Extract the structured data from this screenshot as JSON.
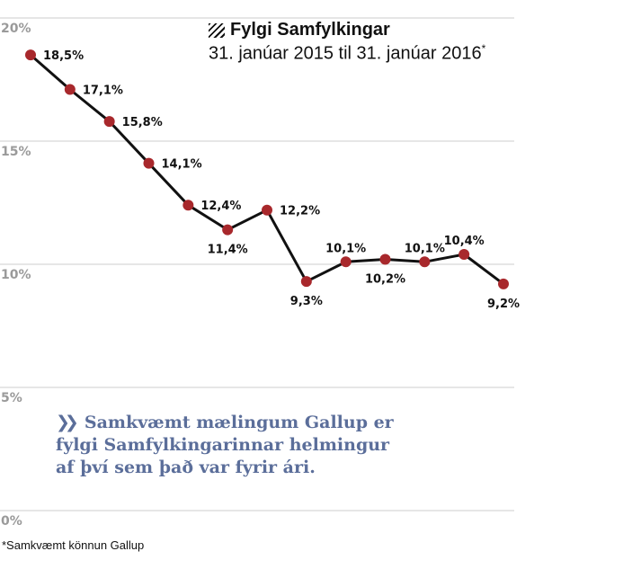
{
  "chart_data": {
    "type": "line",
    "title": "Fylgi Samfylkingar",
    "subtitle": "31. janúar 2015 til 31. janúar 2016",
    "subtitle_marker": "*",
    "x": [
      1,
      2,
      3,
      4,
      5,
      6,
      7,
      8,
      9,
      10,
      11,
      12,
      13
    ],
    "values": [
      18.5,
      17.1,
      15.8,
      14.1,
      12.4,
      11.4,
      12.2,
      9.3,
      10.1,
      10.2,
      10.1,
      10.4,
      9.2
    ],
    "data_labels": [
      "18,5%",
      "17,1%",
      "15,8%",
      "14,1%",
      "12,4%",
      "11,4%",
      "12,2%",
      "9,3%",
      "10,1%",
      "10,2%",
      "10,1%",
      "10,4%",
      "9,2%"
    ],
    "ylim": [
      0,
      20
    ],
    "y_ticks": [
      {
        "value": 20,
        "label": "20%"
      },
      {
        "value": 15,
        "label": "15%"
      },
      {
        "value": 10,
        "label": "10%"
      },
      {
        "value": 5,
        "label": "5%"
      },
      {
        "value": 0,
        "label": "0%"
      }
    ],
    "grid": true,
    "colors": {
      "line": "#111111",
      "marker": "#a8282c",
      "grid": "#cccccc",
      "tick": "#9a9a9a"
    }
  },
  "annotation": {
    "chevrons": "❯❯",
    "text": "Samkvæmt mælingum Gallup er fylgi Samfylkingarinnar helmingur af því sem það var fyrir ári.",
    "color": "#5b6e9a"
  },
  "footnote": "*Samkvæmt könnun Gallup"
}
